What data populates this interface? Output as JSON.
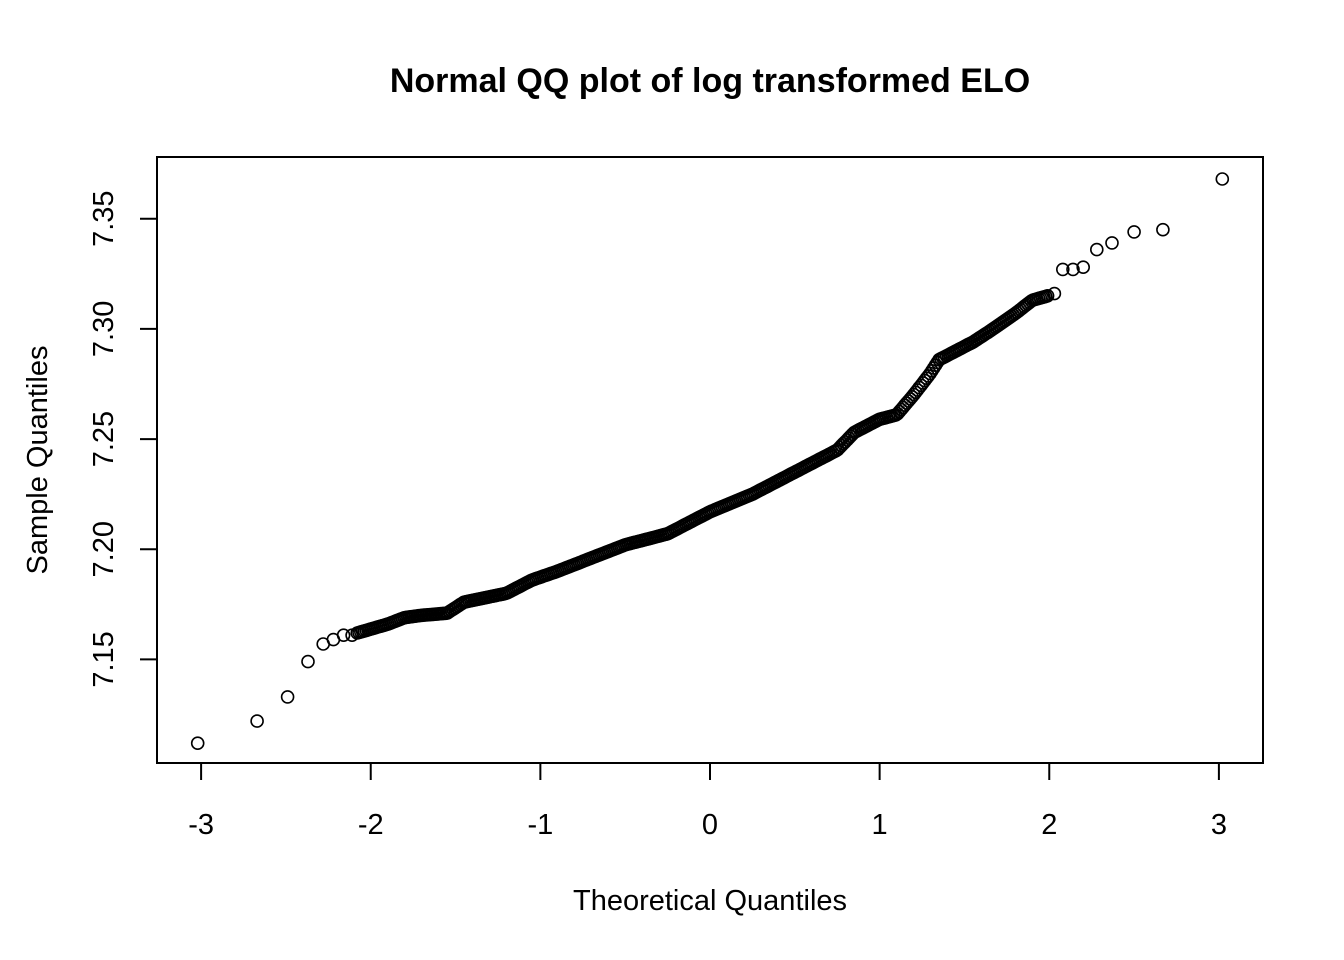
{
  "chart_data": {
    "type": "scatter",
    "title": "Normal QQ plot of log transformed ELO",
    "xlabel": "Theoretical Quantiles",
    "ylabel": "Sample Quantiles",
    "xlim": [
      -3.26,
      3.26
    ],
    "ylim": [
      7.103,
      7.378
    ],
    "xticks": [
      -3,
      -2,
      -1,
      0,
      1,
      2,
      3
    ],
    "xtick_labels": [
      "-3",
      "-2",
      "-1",
      "0",
      "1",
      "2",
      "3"
    ],
    "yticks": [
      7.15,
      7.2,
      7.25,
      7.3,
      7.35
    ],
    "ytick_labels": [
      "7.15",
      "7.20",
      "7.25",
      "7.30",
      "7.35"
    ],
    "grid": false,
    "legend": "none",
    "marker": "open-circle",
    "point_count": 400,
    "tail_points": [
      [
        -3.02,
        7.112
      ],
      [
        -2.67,
        7.122
      ],
      [
        -2.49,
        7.133
      ],
      [
        -2.37,
        7.149
      ],
      [
        -2.28,
        7.157
      ],
      [
        -2.22,
        7.159
      ],
      [
        -2.16,
        7.161
      ],
      [
        -2.11,
        7.161
      ],
      [
        2.03,
        7.316
      ],
      [
        2.08,
        7.327
      ],
      [
        2.14,
        7.327
      ],
      [
        2.2,
        7.328
      ],
      [
        2.28,
        7.336
      ],
      [
        2.37,
        7.339
      ],
      [
        2.5,
        7.344
      ],
      [
        2.67,
        7.345
      ],
      [
        3.02,
        7.368
      ]
    ],
    "curve_knots": [
      [
        -2.08,
        7.162
      ],
      [
        -1.9,
        7.166
      ],
      [
        -1.8,
        7.169
      ],
      [
        -1.7,
        7.17
      ],
      [
        -1.55,
        7.171
      ],
      [
        -1.45,
        7.176
      ],
      [
        -1.2,
        7.18
      ],
      [
        -1.05,
        7.186
      ],
      [
        -0.9,
        7.19
      ],
      [
        -0.7,
        7.196
      ],
      [
        -0.5,
        7.202
      ],
      [
        -0.25,
        7.207
      ],
      [
        0.0,
        7.217
      ],
      [
        0.25,
        7.225
      ],
      [
        0.5,
        7.235
      ],
      [
        0.75,
        7.245
      ],
      [
        0.85,
        7.253
      ],
      [
        1.0,
        7.259
      ],
      [
        1.1,
        7.261
      ],
      [
        1.2,
        7.27
      ],
      [
        1.3,
        7.28
      ],
      [
        1.35,
        7.286
      ],
      [
        1.45,
        7.29
      ],
      [
        1.55,
        7.294
      ],
      [
        1.65,
        7.299
      ],
      [
        1.8,
        7.307
      ],
      [
        1.9,
        7.313
      ],
      [
        1.99,
        7.315
      ]
    ]
  }
}
